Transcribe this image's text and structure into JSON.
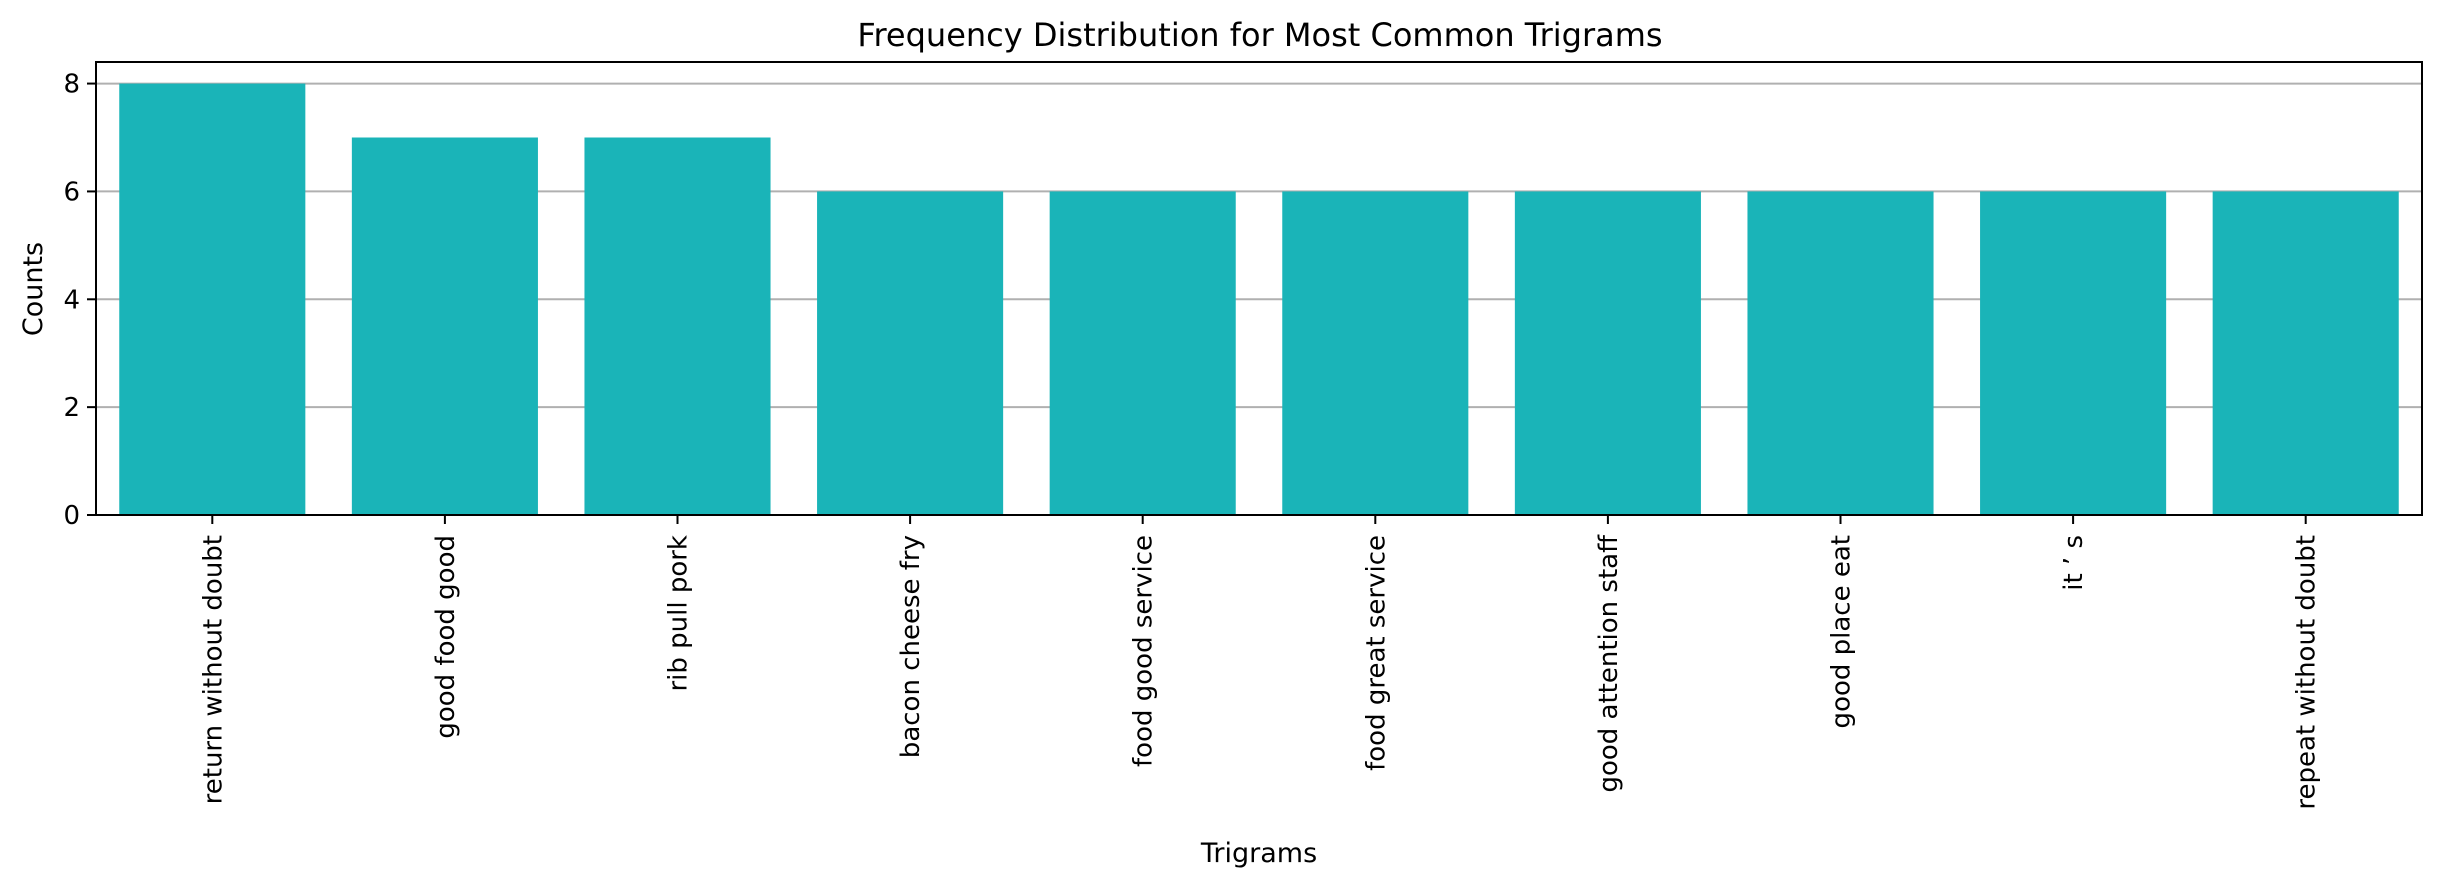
{
  "chart_data": {
    "type": "bar",
    "title": "Frequency Distribution for Most Common Trigrams",
    "xlabel": "Trigrams",
    "ylabel": "Counts",
    "categories": [
      "return without doubt",
      "good food good",
      "rib pull pork",
      "bacon cheese fry",
      "food good service",
      "food great service",
      "good attention staff",
      "good place eat",
      "it ’ s",
      "repeat without doubt"
    ],
    "values": [
      8,
      7,
      7,
      6,
      6,
      6,
      6,
      6,
      6,
      6
    ],
    "ylim": [
      0,
      8.4
    ],
    "yticks": [
      0,
      2,
      4,
      6,
      8
    ],
    "grid": "y-axis horizontal",
    "bar_color": "#1ab4b8"
  }
}
